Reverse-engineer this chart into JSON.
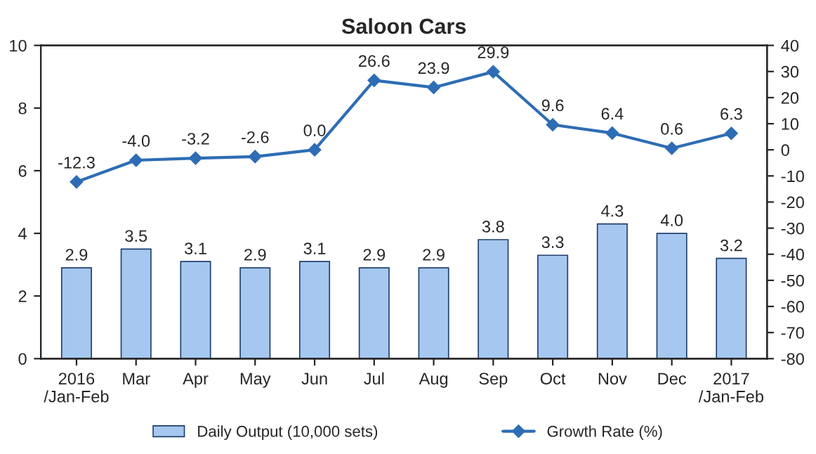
{
  "chart_data": {
    "type": "bar",
    "title": "Saloon Cars",
    "categories": [
      "2016\n/Jan-Feb",
      "Mar",
      "Apr",
      "May",
      "Jun",
      "Jul",
      "Aug",
      "Sep",
      "Oct",
      "Nov",
      "Dec",
      "2017\n/Jan-Feb"
    ],
    "series": [
      {
        "name": "Daily Output (10,000 sets)",
        "color": "#a6c8f0",
        "values": [
          2.9,
          3.5,
          3.1,
          2.9,
          3.1,
          2.9,
          2.9,
          3.8,
          3.3,
          4.3,
          4.0,
          3.2
        ],
        "value_labels": [
          "2.9",
          "3.5",
          "3.1",
          "2.9",
          "3.1",
          "2.9",
          "2.9",
          "3.8",
          "3.3",
          "4.3",
          "4.0",
          "3.2"
        ]
      },
      {
        "name": "Growth Rate (%)",
        "type": "line",
        "axis": "y2",
        "color": "#2e6db4",
        "marker": "diamond",
        "values": [
          -12.3,
          -4.0,
          -3.2,
          -2.6,
          0.0,
          26.6,
          23.9,
          29.9,
          9.6,
          6.4,
          0.6,
          6.3
        ],
        "value_labels": [
          "-12.3",
          "-4.0",
          "-3.2",
          "-2.6",
          "0.0",
          "26.6",
          "23.9",
          "29.9",
          "9.6",
          "6.4",
          "0.6",
          "6.3"
        ]
      }
    ],
    "ylim": [
      0,
      10
    ],
    "yticks": [
      0,
      2,
      4,
      6,
      8,
      10
    ],
    "y2lim": [
      -80,
      40
    ],
    "y2ticks": [
      -80,
      -70,
      -60,
      -50,
      -40,
      -30,
      -20,
      -10,
      0,
      10,
      20,
      30,
      40
    ],
    "grid": false,
    "legend": "bottom"
  }
}
